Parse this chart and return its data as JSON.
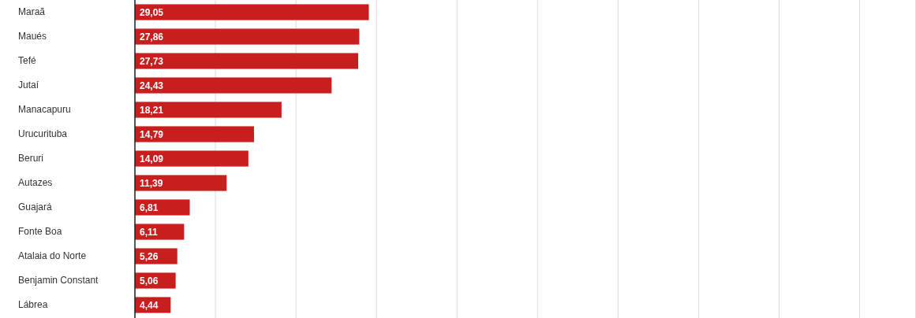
{
  "chart_data": {
    "type": "bar",
    "orientation": "horizontal",
    "categories": [
      "Maraã",
      "Maués",
      "Tefé",
      "Jutaí",
      "Manacapuru",
      "Urucurituba",
      "Beruri",
      "Autazes",
      "Guajará",
      "Fonte Boa",
      "Atalaia do Norte",
      "Benjamin Constant",
      "Lábrea"
    ],
    "values": [
      29.05,
      27.86,
      27.73,
      24.43,
      18.21,
      14.79,
      14.09,
      11.39,
      6.81,
      6.11,
      5.26,
      5.06,
      4.44
    ],
    "value_labels": [
      "29,05",
      "27,86",
      "27,73",
      "24,43",
      "18,21",
      "14,79",
      "14,09",
      "11,39",
      "6,81",
      "6,11",
      "5,26",
      "5,06",
      "4,44"
    ],
    "color": "#c81e1e",
    "xlim": [
      0,
      97
    ],
    "xticks": [
      {
        "value": 0,
        "label": null
      },
      {
        "value": 10,
        "label": null
      },
      {
        "value": 20,
        "label": null
      },
      {
        "value": 30,
        "label": null
      },
      {
        "value": 40,
        "label": null
      },
      {
        "value": 50,
        "label": null
      },
      {
        "value": 60,
        "label": null
      },
      {
        "value": 70,
        "label": null
      },
      {
        "value": 80,
        "label": null
      },
      {
        "value": 90,
        "label": null
      }
    ],
    "grid": "x",
    "tick_labels": "y"
  }
}
